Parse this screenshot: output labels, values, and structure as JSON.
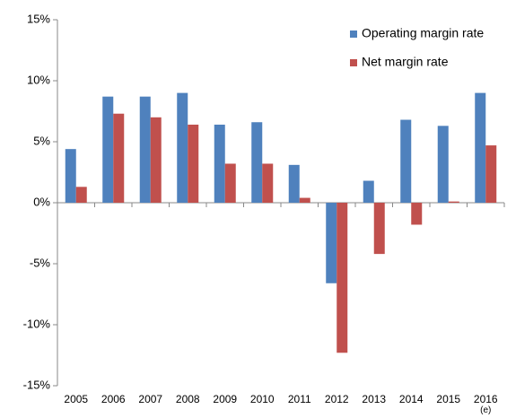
{
  "chart_data": {
    "type": "bar",
    "categories": [
      "2005",
      "2006",
      "2007",
      "2008",
      "2009",
      "2010",
      "2011",
      "2012",
      "2013",
      "2014",
      "2015",
      "2016\n(e)"
    ],
    "series": [
      {
        "name": "Operating margin rate",
        "color": "#4f81bd",
        "values": [
          4.4,
          8.7,
          8.7,
          9.0,
          6.4,
          6.6,
          3.1,
          -6.6,
          1.8,
          6.8,
          6.3,
          9.0
        ]
      },
      {
        "name": "Net margin rate",
        "color": "#c0504d",
        "values": [
          1.3,
          7.3,
          7.0,
          6.4,
          3.2,
          3.2,
          0.4,
          -12.3,
          -4.2,
          -1.8,
          0.1,
          4.7
        ]
      }
    ],
    "ylim": [
      -15,
      15
    ],
    "yticks": [
      {
        "value": -15,
        "label": "-15%"
      },
      {
        "value": -10,
        "label": "-10%"
      },
      {
        "value": -5,
        "label": "-5%"
      },
      {
        "value": 0,
        "label": "0%"
      },
      {
        "value": 5,
        "label": "5%"
      },
      {
        "value": 10,
        "label": "10%"
      },
      {
        "value": 15,
        "label": "15%"
      }
    ],
    "grid": false,
    "legend": "top-right"
  }
}
